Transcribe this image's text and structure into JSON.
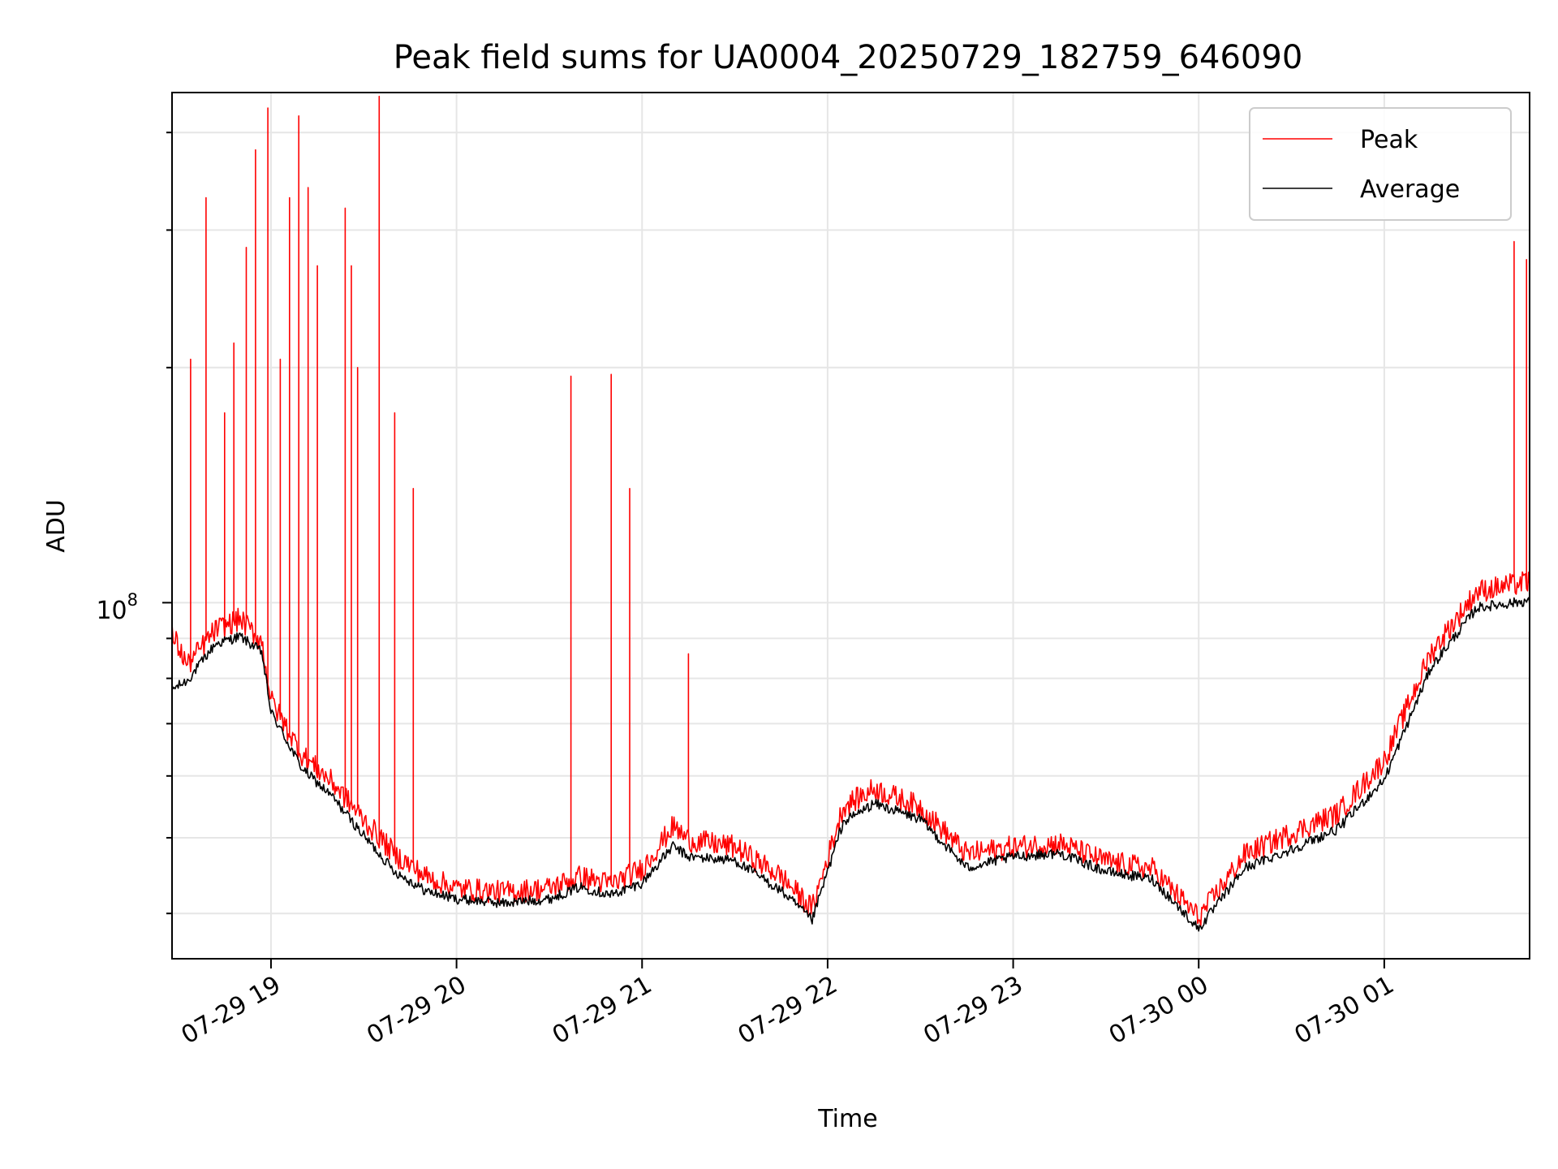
{
  "chart_data": {
    "type": "line",
    "title": "Peak field sums for UA0004_20250729_182759_646090",
    "xlabel": "Time",
    "ylabel": "ADU",
    "yscale": "log",
    "ylim": [
      35000000,
      450000000
    ],
    "xlim": [
      "2025-07-29 18:28",
      "2025-07-30 01:47"
    ],
    "grid": true,
    "legend": "top-right",
    "x_ticks": [
      "07-29 19",
      "07-29 20",
      "07-29 21",
      "07-29 22",
      "07-29 23",
      "07-30 00",
      "07-30 01"
    ],
    "y_tick_major": {
      "base": "10",
      "exponent": "8"
    },
    "series": [
      {
        "name": "Peak",
        "color": "#ff0000",
        "x": [
          "2025-07-29 18:28",
          "2025-07-29 18:33",
          "2025-07-29 18:42",
          "2025-07-29 18:50",
          "2025-07-29 18:57",
          "2025-07-29 19:00",
          "2025-07-29 19:10",
          "2025-07-29 19:20",
          "2025-07-29 19:30",
          "2025-07-29 19:40",
          "2025-07-29 19:50",
          "2025-07-29 20:00",
          "2025-07-29 20:15",
          "2025-07-29 20:30",
          "2025-07-29 20:40",
          "2025-07-29 20:50",
          "2025-07-29 21:00",
          "2025-07-29 21:10",
          "2025-07-29 21:15",
          "2025-07-29 21:30",
          "2025-07-29 21:45",
          "2025-07-29 21:55",
          "2025-07-29 22:05",
          "2025-07-29 22:15",
          "2025-07-29 22:30",
          "2025-07-29 22:45",
          "2025-07-29 23:00",
          "2025-07-29 23:15",
          "2025-07-29 23:30",
          "2025-07-29 23:45",
          "2025-07-30 00:00",
          "2025-07-30 00:15",
          "2025-07-30 00:30",
          "2025-07-30 00:45",
          "2025-07-30 01:00",
          "2025-07-30 01:15",
          "2025-07-30 01:30",
          "2025-07-30 01:47"
        ],
        "values": [
          90000000,
          82000000,
          91000000,
          94000000,
          88000000,
          74000000,
          63000000,
          58000000,
          52000000,
          47000000,
          44000000,
          42500000,
          42000000,
          42500000,
          44000000,
          43000000,
          45000000,
          51000000,
          49000000,
          48000000,
          44000000,
          40000000,
          54000000,
          57000000,
          54000000,
          47000000,
          48000000,
          48500000,
          46000000,
          45000000,
          39000000,
          47000000,
          50000000,
          53000000,
          62000000,
          85000000,
          102000000,
          105000000
        ]
      },
      {
        "name": "Average",
        "color": "#000000",
        "x": [
          "2025-07-29 18:28",
          "2025-07-29 18:33",
          "2025-07-29 18:42",
          "2025-07-29 18:50",
          "2025-07-29 18:57",
          "2025-07-29 19:00",
          "2025-07-29 19:10",
          "2025-07-29 19:20",
          "2025-07-29 19:30",
          "2025-07-29 19:40",
          "2025-07-29 19:50",
          "2025-07-29 20:00",
          "2025-07-29 20:15",
          "2025-07-29 20:30",
          "2025-07-29 20:40",
          "2025-07-29 20:50",
          "2025-07-29 21:00",
          "2025-07-29 21:10",
          "2025-07-29 21:15",
          "2025-07-29 21:30",
          "2025-07-29 21:45",
          "2025-07-29 21:55",
          "2025-07-29 22:05",
          "2025-07-29 22:15",
          "2025-07-29 22:30",
          "2025-07-29 22:45",
          "2025-07-29 23:00",
          "2025-07-29 23:15",
          "2025-07-29 23:30",
          "2025-07-29 23:45",
          "2025-07-30 00:00",
          "2025-07-30 00:15",
          "2025-07-30 00:30",
          "2025-07-30 00:45",
          "2025-07-30 01:00",
          "2025-07-30 01:15",
          "2025-07-30 01:30",
          "2025-07-30 01:47"
        ],
        "values": [
          77000000,
          79000000,
          88000000,
          90000000,
          86000000,
          72000000,
          61000000,
          56000000,
          50000000,
          45000000,
          42500000,
          41500000,
          41000000,
          41500000,
          43000000,
          42000000,
          43500000,
          48500000,
          47000000,
          46500000,
          42500000,
          39000000,
          52000000,
          55000000,
          52500000,
          45500000,
          47000000,
          47500000,
          45000000,
          44000000,
          38000000,
          45500000,
          48000000,
          51000000,
          59000000,
          82000000,
          98000000,
          100000000
        ]
      }
    ],
    "spikes": {
      "x": [
        "2025-07-29 18:34",
        "2025-07-29 18:39",
        "2025-07-29 18:45",
        "2025-07-29 18:48",
        "2025-07-29 18:52",
        "2025-07-29 18:55",
        "2025-07-29 18:59",
        "2025-07-29 19:03",
        "2025-07-29 19:06",
        "2025-07-29 19:09",
        "2025-07-29 19:12",
        "2025-07-29 19:15",
        "2025-07-29 19:24",
        "2025-07-29 19:26",
        "2025-07-29 19:28",
        "2025-07-29 19:35",
        "2025-07-29 19:40",
        "2025-07-29 19:46",
        "2025-07-29 20:37",
        "2025-07-29 20:50",
        "2025-07-29 20:56",
        "2025-07-29 21:15",
        "2025-07-30 01:42",
        "2025-07-30 01:46"
      ],
      "values": [
        205000000,
        330000000,
        175000000,
        215000000,
        285000000,
        380000000,
        430000000,
        205000000,
        330000000,
        420000000,
        340000000,
        270000000,
        320000000,
        270000000,
        200000000,
        445000000,
        175000000,
        140000000,
        195000000,
        196000000,
        140000000,
        86000000,
        290000000,
        275000000
      ]
    },
    "legend_entries": [
      "Peak",
      "Average"
    ]
  }
}
